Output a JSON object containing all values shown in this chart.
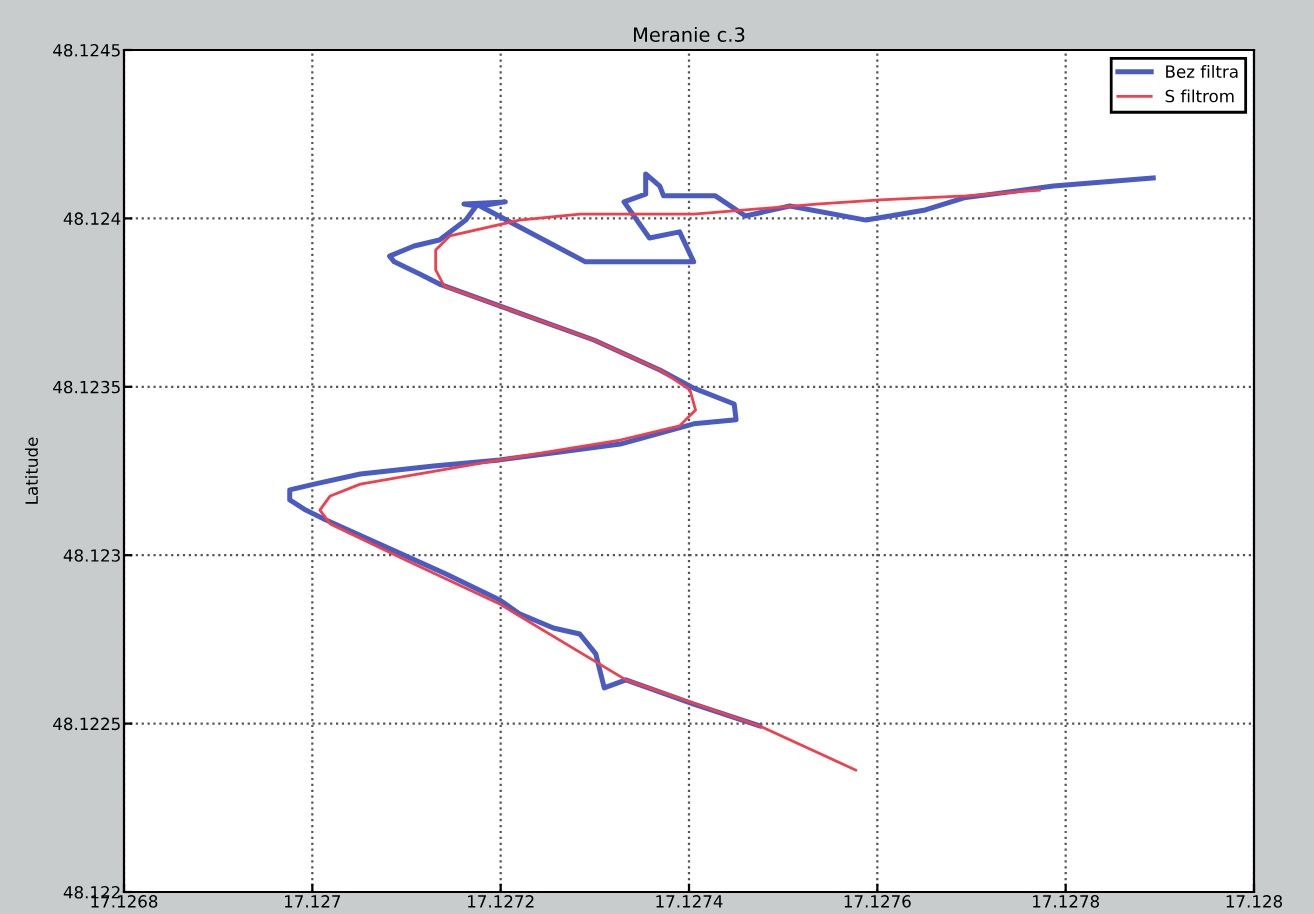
{
  "chart_data": {
    "type": "line",
    "title": "Meranie c.3",
    "ylabel": "Latitude",
    "xlim": [
      17.1268,
      17.128
    ],
    "xticks": [
      17.1268,
      17.127,
      17.1272,
      17.1274,
      17.1276,
      17.1278,
      17.128
    ],
    "ylim": [
      48.122,
      48.1245
    ],
    "yticks": [
      48.122,
      48.1225,
      48.123,
      48.1235,
      48.124,
      48.1245
    ],
    "grid": true,
    "legend": "top right",
    "marker": "none",
    "line_style": "solid",
    "series": [
      {
        "name": "Bez filtra",
        "color": "#4a5cc4",
        "x": [
          17.127475,
          17.127405,
          17.127333,
          17.12731,
          17.127301,
          17.127284,
          17.127256,
          17.12722,
          17.127199,
          17.127142,
          17.127099,
          17.127014,
          17.126993,
          17.126976,
          17.126976,
          17.127002,
          17.127051,
          17.127129,
          17.127199,
          17.127263,
          17.127327,
          17.127405,
          17.12745,
          17.127448,
          17.127405,
          17.127369,
          17.127299,
          17.127193,
          17.127135,
          17.127114,
          17.127087,
          17.127082,
          17.127108,
          17.127135,
          17.127163,
          17.127174,
          17.127161,
          17.127205,
          17.127178,
          17.12729,
          17.127405,
          17.12739,
          17.127358,
          17.127331,
          17.127354,
          17.127354,
          17.127369,
          17.127373,
          17.127428,
          17.12746,
          17.127507,
          17.127588,
          17.127651,
          17.127692,
          17.127787,
          17.127893
        ],
        "values": [
          48.122493,
          48.122558,
          48.12263,
          48.122606,
          48.122707,
          48.122766,
          48.122784,
          48.122826,
          48.122867,
          48.122944,
          48.122998,
          48.123105,
          48.123134,
          48.123164,
          48.123194,
          48.123211,
          48.123241,
          48.123265,
          48.123283,
          48.123306,
          48.12333,
          48.12339,
          48.123402,
          48.123449,
          48.123496,
          48.12355,
          48.123639,
          48.123746,
          48.123805,
          48.123835,
          48.123871,
          48.123888,
          48.123918,
          48.123936,
          48.123995,
          48.124037,
          48.124043,
          48.124049,
          48.124037,
          48.123871,
          48.123871,
          48.12396,
          48.123942,
          48.124049,
          48.124072,
          48.124132,
          48.124096,
          48.124067,
          48.124067,
          48.124007,
          48.124037,
          48.123995,
          48.124025,
          48.124061,
          48.124096,
          48.12412
        ]
      },
      {
        "name": "S filtrom",
        "color": "#f0404c",
        "x": [
          17.127577,
          17.127475,
          17.127333,
          17.127199,
          17.127099,
          17.127019,
          17.127008,
          17.127019,
          17.127051,
          17.127199,
          17.127327,
          17.12739,
          17.127407,
          17.127401,
          17.127369,
          17.127299,
          17.127199,
          17.12714,
          17.127131,
          17.127131,
          17.127146,
          17.12722,
          17.127284,
          17.127405,
          17.127539,
          17.127603,
          17.127694,
          17.127772
        ],
        "values": [
          48.122362,
          48.122493,
          48.12263,
          48.122855,
          48.122986,
          48.123093,
          48.123134,
          48.123176,
          48.123211,
          48.123283,
          48.123342,
          48.123384,
          48.123431,
          48.123491,
          48.12355,
          48.123639,
          48.12374,
          48.123799,
          48.123847,
          48.123906,
          48.123948,
          48.123995,
          48.124013,
          48.124013,
          48.124043,
          48.124055,
          48.124067,
          48.124084
        ]
      }
    ]
  }
}
